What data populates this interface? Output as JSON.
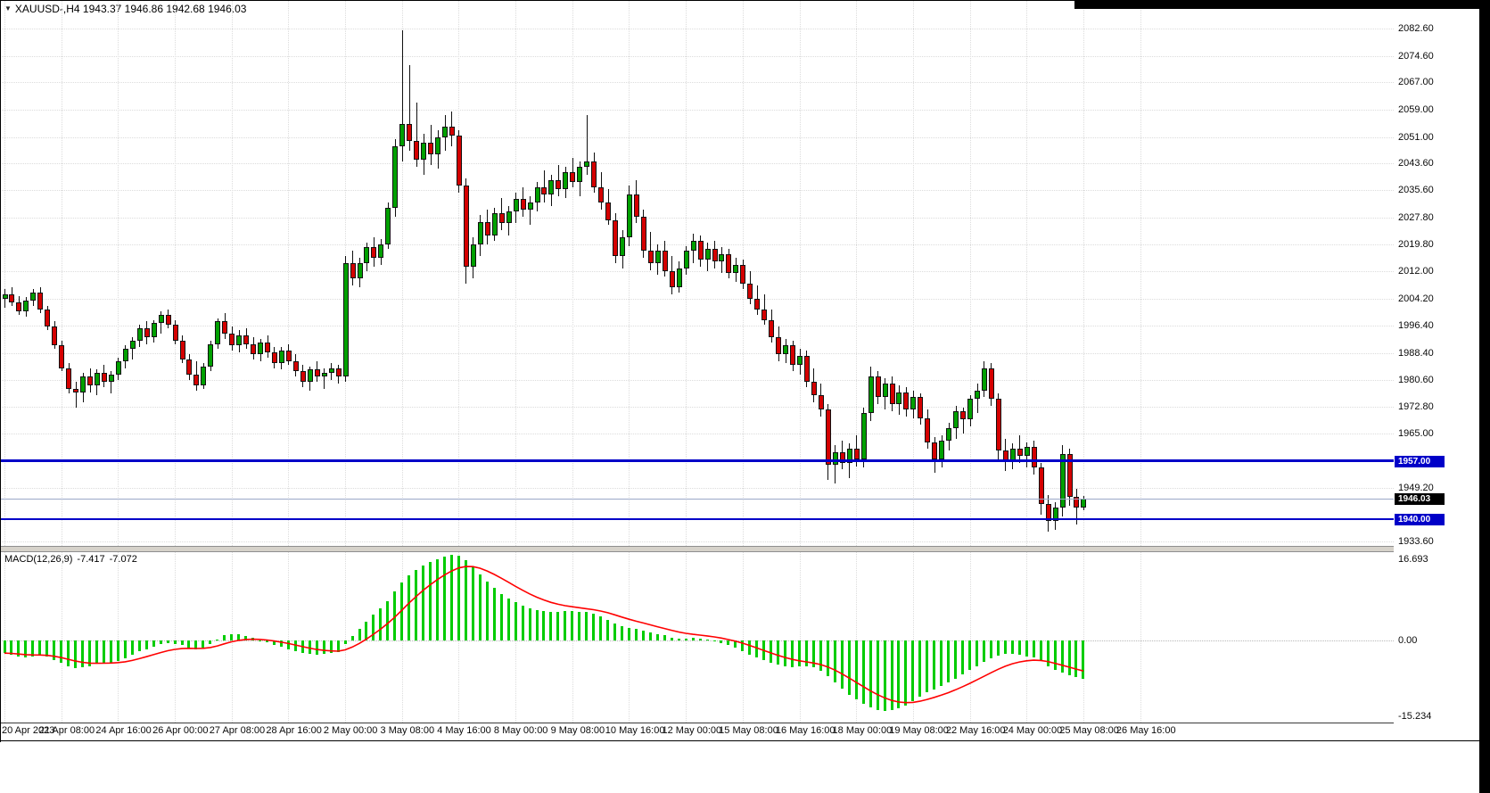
{
  "header": {
    "dropdown_icon": "▼",
    "title": "XAUUSD-,H4 1943.37 1946.86 1942.68 1946.03"
  },
  "colors": {
    "background": "#FFFFFF",
    "bull": "#00A000",
    "bear": "#D40000",
    "outline": "#101010",
    "macd_histogram": "#00CC00",
    "macd_signal": "#FF0000",
    "hline_blue": "#0000C8",
    "bid_line": "#9AA8C8",
    "bid_tag_bg": "#000000",
    "tag_text": "#FFFFFF"
  },
  "chart_data": {
    "type": "candlestick",
    "symbol": "XAUUSD-",
    "timeframe": "H4",
    "current_bar": {
      "open": 1943.37,
      "high": 1946.86,
      "low": 1942.68,
      "close": 1946.03
    },
    "price_axis_labels": [
      "2082.60",
      "2074.60",
      "2067.00",
      "2059.00",
      "2051.00",
      "2043.60",
      "2035.60",
      "2027.80",
      "2019.80",
      "2012.00",
      "2004.20",
      "1996.40",
      "1988.40",
      "1980.60",
      "1972.80",
      "1965.00",
      "1949.20",
      "1933.60"
    ],
    "time_axis_labels": [
      "20 Apr 2023",
      "21 Apr 08:00",
      "24 Apr 16:00",
      "26 Apr 00:00",
      "27 Apr 08:00",
      "28 Apr 16:00",
      "2 May 00:00",
      "3 May 08:00",
      "4 May 16:00",
      "8 May 00:00",
      "9 May 08:00",
      "10 May 16:00",
      "12 May 00:00",
      "15 May 08:00",
      "16 May 16:00",
      "18 May 00:00",
      "19 May 08:00",
      "22 May 16:00",
      "24 May 00:00",
      "25 May 08:00",
      "26 May 16:00"
    ],
    "horizontal_lines": [
      {
        "price": 1957.0,
        "label": "1957.00",
        "thickness": 3
      },
      {
        "price": 1940.0,
        "label": "1940.00",
        "thickness": 2
      }
    ],
    "bid": {
      "price": 1946.03,
      "label": "1946.03"
    },
    "candles": [
      [
        2004.0,
        2007.0,
        2001.5,
        2005.5
      ],
      [
        2005.5,
        2007.5,
        2002.0,
        2003.0
      ],
      [
        2003.0,
        2005.0,
        1999.5,
        2000.5
      ],
      [
        2000.5,
        2004.5,
        1999.0,
        2003.5
      ],
      [
        2003.5,
        2007.0,
        2002.0,
        2006.0
      ],
      [
        2006.0,
        2007.5,
        2000.0,
        2001.0
      ],
      [
        2001.0,
        2002.0,
        1995.0,
        1996.0
      ],
      [
        1996.0,
        1997.5,
        1989.5,
        1990.5
      ],
      [
        1990.5,
        1992.0,
        1983.0,
        1984.0
      ],
      [
        1984.0,
        1985.5,
        1976.5,
        1978.0
      ],
      [
        1978.0,
        1980.0,
        1972.5,
        1977.0
      ],
      [
        1977.0,
        1982.5,
        1974.0,
        1981.5
      ],
      [
        1981.5,
        1984.0,
        1977.0,
        1979.0
      ],
      [
        1979.0,
        1983.5,
        1976.0,
        1982.5
      ],
      [
        1982.5,
        1985.0,
        1978.5,
        1980.0
      ],
      [
        1980.0,
        1983.0,
        1976.5,
        1982.0
      ],
      [
        1982.0,
        1987.0,
        1980.5,
        1986.0
      ],
      [
        1986.0,
        1990.5,
        1984.0,
        1989.5
      ],
      [
        1989.5,
        1993.0,
        1986.5,
        1992.0
      ],
      [
        1992.0,
        1996.5,
        1990.0,
        1995.5
      ],
      [
        1995.5,
        1997.5,
        1991.0,
        1993.0
      ],
      [
        1993.0,
        1998.0,
        1991.5,
        1997.0
      ],
      [
        1997.0,
        2000.5,
        1994.0,
        1999.5
      ],
      [
        1999.5,
        2001.0,
        1995.5,
        1996.5
      ],
      [
        1996.5,
        1998.0,
        1991.0,
        1992.0
      ],
      [
        1992.0,
        1993.5,
        1985.5,
        1986.5
      ],
      [
        1986.5,
        1988.0,
        1980.5,
        1982.0
      ],
      [
        1982.0,
        1986.0,
        1977.5,
        1979.0
      ],
      [
        1979.0,
        1985.5,
        1978.0,
        1984.5
      ],
      [
        1984.5,
        1992.0,
        1983.0,
        1991.0
      ],
      [
        1991.0,
        1998.5,
        1989.5,
        1997.5
      ],
      [
        1997.5,
        2000.0,
        1992.5,
        1994.0
      ],
      [
        1994.0,
        1996.0,
        1989.0,
        1990.5
      ],
      [
        1990.5,
        1995.0,
        1988.5,
        1993.5
      ],
      [
        1993.5,
        1995.5,
        1989.5,
        1991.0
      ],
      [
        1991.0,
        1993.0,
        1986.5,
        1988.0
      ],
      [
        1988.0,
        1992.5,
        1986.0,
        1991.5
      ],
      [
        1991.5,
        1993.5,
        1987.0,
        1988.5
      ],
      [
        1988.5,
        1990.0,
        1984.0,
        1985.5
      ],
      [
        1985.5,
        1990.0,
        1983.5,
        1989.0
      ],
      [
        1989.0,
        1991.0,
        1985.0,
        1986.0
      ],
      [
        1986.0,
        1988.0,
        1981.5,
        1983.0
      ],
      [
        1983.0,
        1985.0,
        1978.5,
        1980.0
      ],
      [
        1980.0,
        1984.5,
        1977.5,
        1983.5
      ],
      [
        1983.5,
        1986.0,
        1980.0,
        1981.5
      ],
      [
        1981.5,
        1984.0,
        1978.0,
        1982.5
      ],
      [
        1982.5,
        1985.5,
        1980.5,
        1984.0
      ],
      [
        1984.0,
        1985.0,
        1979.5,
        1981.5
      ],
      [
        1981.5,
        2016.5,
        1980.0,
        2014.5
      ],
      [
        2014.5,
        2018.0,
        2008.0,
        2010.0
      ],
      [
        2010.0,
        2016.0,
        2007.5,
        2014.5
      ],
      [
        2014.5,
        2020.5,
        2012.0,
        2019.0
      ],
      [
        2019.0,
        2022.0,
        2013.5,
        2016.0
      ],
      [
        2016.0,
        2021.5,
        2014.0,
        2020.0
      ],
      [
        2020.0,
        2032.0,
        2018.5,
        2030.5
      ],
      [
        2030.5,
        2050.5,
        2028.0,
        2048.5
      ],
      [
        2048.5,
        2082.0,
        2044.0,
        2055.0
      ],
      [
        2055.0,
        2072.0,
        2047.0,
        2050.0
      ],
      [
        2050.0,
        2061.0,
        2042.5,
        2044.5
      ],
      [
        2044.5,
        2052.0,
        2040.0,
        2049.5
      ],
      [
        2049.5,
        2054.5,
        2043.0,
        2046.0
      ],
      [
        2046.0,
        2053.0,
        2042.0,
        2051.0
      ],
      [
        2051.0,
        2057.5,
        2047.0,
        2054.0
      ],
      [
        2054.0,
        2058.5,
        2048.5,
        2051.5
      ],
      [
        2051.5,
        2053.0,
        2035.0,
        2037.0
      ],
      [
        2037.0,
        2039.0,
        2008.5,
        2013.5
      ],
      [
        2013.5,
        2022.0,
        2010.0,
        2020.0
      ],
      [
        2020.0,
        2028.5,
        2016.5,
        2026.5
      ],
      [
        2026.5,
        2030.0,
        2020.0,
        2022.5
      ],
      [
        2022.5,
        2030.5,
        2021.0,
        2029.0
      ],
      [
        2029.0,
        2033.5,
        2024.0,
        2026.0
      ],
      [
        2026.0,
        2031.0,
        2022.5,
        2029.5
      ],
      [
        2029.5,
        2035.0,
        2026.0,
        2033.0
      ],
      [
        2033.0,
        2036.5,
        2028.0,
        2030.0
      ],
      [
        2030.0,
        2034.0,
        2025.5,
        2032.0
      ],
      [
        2032.0,
        2038.0,
        2029.5,
        2036.5
      ],
      [
        2036.5,
        2041.5,
        2032.0,
        2034.5
      ],
      [
        2034.5,
        2040.0,
        2031.0,
        2038.5
      ],
      [
        2038.5,
        2043.0,
        2034.0,
        2036.0
      ],
      [
        2036.0,
        2042.5,
        2033.5,
        2041.0
      ],
      [
        2041.0,
        2045.0,
        2036.5,
        2038.0
      ],
      [
        2038.0,
        2044.0,
        2034.0,
        2042.5
      ],
      [
        2042.5,
        2057.5,
        2040.0,
        2044.0
      ],
      [
        2044.0,
        2046.5,
        2035.0,
        2036.5
      ],
      [
        2036.5,
        2041.0,
        2030.0,
        2032.0
      ],
      [
        2032.0,
        2036.0,
        2025.5,
        2027.0
      ],
      [
        2027.0,
        2029.0,
        2014.5,
        2016.5
      ],
      [
        2016.5,
        2024.0,
        2013.0,
        2022.0
      ],
      [
        2022.0,
        2037.0,
        2019.5,
        2034.5
      ],
      [
        2034.5,
        2038.5,
        2026.0,
        2028.0
      ],
      [
        2028.0,
        2030.0,
        2016.0,
        2018.0
      ],
      [
        2018.0,
        2023.5,
        2012.5,
        2014.5
      ],
      [
        2014.5,
        2020.0,
        2011.0,
        2018.0
      ],
      [
        2018.0,
        2021.0,
        2010.5,
        2012.0
      ],
      [
        2012.0,
        2016.5,
        2005.5,
        2007.5
      ],
      [
        2007.5,
        2015.0,
        2006.0,
        2013.0
      ],
      [
        2013.0,
        2019.5,
        2011.0,
        2018.0
      ],
      [
        2018.0,
        2023.0,
        2014.5,
        2021.0
      ],
      [
        2021.0,
        2022.5,
        2013.5,
        2015.5
      ],
      [
        2015.5,
        2020.5,
        2012.0,
        2018.5
      ],
      [
        2018.5,
        2021.0,
        2013.0,
        2015.0
      ],
      [
        2015.0,
        2019.0,
        2011.5,
        2017.0
      ],
      [
        2017.0,
        2018.5,
        2010.0,
        2011.5
      ],
      [
        2011.5,
        2016.0,
        2009.0,
        2014.0
      ],
      [
        2014.0,
        2015.5,
        2007.0,
        2008.5
      ],
      [
        2008.5,
        2012.0,
        2002.5,
        2004.0
      ],
      [
        2004.0,
        2008.0,
        1999.5,
        2001.0
      ],
      [
        2001.0,
        2005.5,
        1996.5,
        1998.0
      ],
      [
        1998.0,
        2001.0,
        1991.5,
        1993.0
      ],
      [
        1993.0,
        1996.0,
        1986.0,
        1988.0
      ],
      [
        1988.0,
        1992.5,
        1985.5,
        1990.5
      ],
      [
        1990.5,
        1992.0,
        1983.0,
        1985.0
      ],
      [
        1985.0,
        1989.5,
        1982.0,
        1987.5
      ],
      [
        1987.5,
        1989.0,
        1978.5,
        1980.0
      ],
      [
        1980.0,
        1984.0,
        1974.0,
        1976.0
      ],
      [
        1976.0,
        1979.5,
        1970.0,
        1972.0
      ],
      [
        1972.0,
        1973.5,
        1951.5,
        1956.0
      ],
      [
        1956.0,
        1961.5,
        1950.5,
        1959.5
      ],
      [
        1959.5,
        1963.0,
        1954.5,
        1956.5
      ],
      [
        1956.5,
        1962.0,
        1952.0,
        1960.5
      ],
      [
        1960.5,
        1964.5,
        1955.5,
        1957.5
      ],
      [
        1957.5,
        1972.5,
        1955.0,
        1971.0
      ],
      [
        1971.0,
        1984.5,
        1968.5,
        1981.5
      ],
      [
        1981.5,
        1983.0,
        1973.5,
        1975.5
      ],
      [
        1975.5,
        1981.0,
        1972.0,
        1979.5
      ],
      [
        1979.5,
        1981.5,
        1971.5,
        1973.5
      ],
      [
        1973.5,
        1979.0,
        1970.5,
        1977.0
      ],
      [
        1977.0,
        1978.5,
        1970.0,
        1972.0
      ],
      [
        1972.0,
        1977.5,
        1969.5,
        1975.5
      ],
      [
        1975.5,
        1976.5,
        1967.5,
        1969.5
      ],
      [
        1969.5,
        1972.0,
        1960.5,
        1962.5
      ],
      [
        1962.5,
        1964.0,
        1953.5,
        1957.5
      ],
      [
        1957.5,
        1964.5,
        1955.0,
        1963.0
      ],
      [
        1963.0,
        1968.0,
        1960.0,
        1966.5
      ],
      [
        1966.5,
        1973.0,
        1963.5,
        1971.5
      ],
      [
        1971.5,
        1972.5,
        1965.0,
        1969.0
      ],
      [
        1969.0,
        1976.0,
        1967.0,
        1975.0
      ],
      [
        1975.0,
        1979.5,
        1971.0,
        1977.5
      ],
      [
        1977.5,
        1986.0,
        1975.5,
        1984.0
      ],
      [
        1984.0,
        1985.5,
        1973.0,
        1975.0
      ],
      [
        1975.0,
        1976.5,
        1957.5,
        1960.0
      ],
      [
        1960.0,
        1963.5,
        1954.0,
        1957.0
      ],
      [
        1957.0,
        1962.0,
        1954.5,
        1960.5
      ],
      [
        1960.5,
        1964.5,
        1956.5,
        1958.5
      ],
      [
        1958.5,
        1962.5,
        1955.0,
        1961.0
      ],
      [
        1961.0,
        1963.0,
        1953.0,
        1955.0
      ],
      [
        1955.0,
        1956.5,
        1941.5,
        1944.5
      ],
      [
        1944.5,
        1947.0,
        1936.5,
        1939.5
      ],
      [
        1939.5,
        1945.0,
        1937.0,
        1943.5
      ],
      [
        1943.5,
        1961.5,
        1941.0,
        1959.0
      ],
      [
        1959.0,
        1960.5,
        1944.0,
        1946.5
      ],
      [
        1946.5,
        1949.0,
        1938.5,
        1943.5
      ],
      [
        1943.37,
        1946.86,
        1942.68,
        1946.03
      ]
    ],
    "macd": {
      "label": "MACD(12,26,9)",
      "main_value": "-7.417",
      "signal_value": "-7.072",
      "axis_labels": [
        "16.693",
        "0.00",
        "-15.234"
      ],
      "histogram": [
        -2.5,
        -2.8,
        -3.1,
        -3.3,
        -3.1,
        -2.9,
        -3.2,
        -3.8,
        -4.4,
        -5.0,
        -5.4,
        -5.3,
        -5.0,
        -4.6,
        -4.4,
        -4.3,
        -4.0,
        -3.5,
        -2.9,
        -2.2,
        -1.7,
        -1.2,
        -0.8,
        -0.6,
        -0.7,
        -1.0,
        -1.4,
        -1.7,
        -1.5,
        -0.8,
        0.2,
        0.9,
        1.2,
        1.1,
        0.8,
        0.4,
        0.0,
        -0.4,
        -0.9,
        -1.3,
        -1.7,
        -2.1,
        -2.5,
        -2.7,
        -2.8,
        -2.7,
        -2.5,
        -2.3,
        -0.8,
        0.8,
        2.2,
        3.6,
        4.9,
        6.1,
        7.6,
        9.4,
        11.2,
        12.6,
        13.6,
        14.4,
        15.1,
        15.7,
        16.2,
        16.5,
        16.3,
        15.4,
        14.1,
        12.7,
        11.3,
        10.1,
        9.0,
        8.1,
        7.3,
        6.6,
        6.1,
        5.8,
        5.6,
        5.5,
        5.5,
        5.6,
        5.6,
        5.5,
        5.4,
        5.1,
        4.6,
        4.0,
        3.3,
        2.7,
        2.4,
        2.2,
        1.9,
        1.5,
        1.2,
        0.9,
        0.5,
        0.3,
        0.3,
        0.4,
        0.3,
        0.2,
        -0.1,
        -0.5,
        -1.0,
        -1.5,
        -2.1,
        -2.8,
        -3.4,
        -3.9,
        -4.4,
        -4.8,
        -5.0,
        -5.2,
        -5.1,
        -5.0,
        -5.3,
        -5.9,
        -7.0,
        -8.2,
        -9.4,
        -10.5,
        -11.5,
        -12.3,
        -13.0,
        -13.5,
        -13.7,
        -13.6,
        -13.2,
        -12.6,
        -11.8,
        -10.9,
        -10.1,
        -9.5,
        -8.9,
        -8.2,
        -7.4,
        -6.6,
        -5.8,
        -5.0,
        -4.2,
        -3.5,
        -3.0,
        -2.7,
        -2.6,
        -2.8,
        -3.1,
        -3.4,
        -4.1,
        -5.0,
        -5.8,
        -6.3,
        -6.7,
        -7.1,
        -7.417
      ]
    }
  }
}
